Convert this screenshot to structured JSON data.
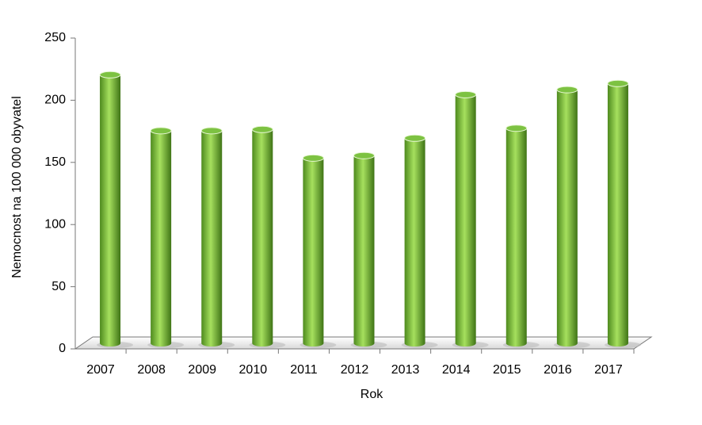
{
  "chart_data": {
    "type": "bar",
    "y_label": "Nemocnost na 100 000 obyvatel",
    "x_label": "Rok",
    "categories": [
      "2007",
      "2008",
      "2009",
      "2010",
      "2011",
      "2012",
      "2013",
      "2014",
      "2015",
      "2016",
      "2017"
    ],
    "values": [
      216,
      171,
      171,
      172,
      149,
      151,
      165,
      200,
      173,
      204,
      209
    ],
    "color": "#7dc242",
    "ylim": [
      0,
      250
    ],
    "yticks": [
      0,
      50,
      100,
      150,
      200,
      250
    ]
  }
}
